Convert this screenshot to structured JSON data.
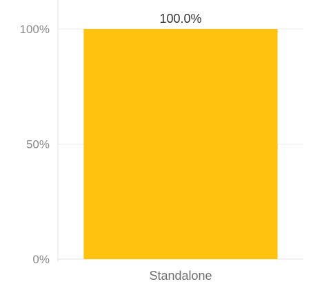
{
  "chart_data": {
    "type": "bar",
    "categories": [
      "Standalone"
    ],
    "values": [
      100.0
    ],
    "data_labels": [
      "100.0%"
    ],
    "y_ticks": [
      {
        "value": 0,
        "label": "0%"
      },
      {
        "value": 50,
        "label": "50%"
      },
      {
        "value": 100,
        "label": "100%"
      }
    ],
    "ylim": [
      0,
      100
    ],
    "grid": true,
    "colors": {
      "bar": "#FFC20E",
      "grid": "#ECECEC",
      "axis": "#E3E3E3"
    }
  }
}
